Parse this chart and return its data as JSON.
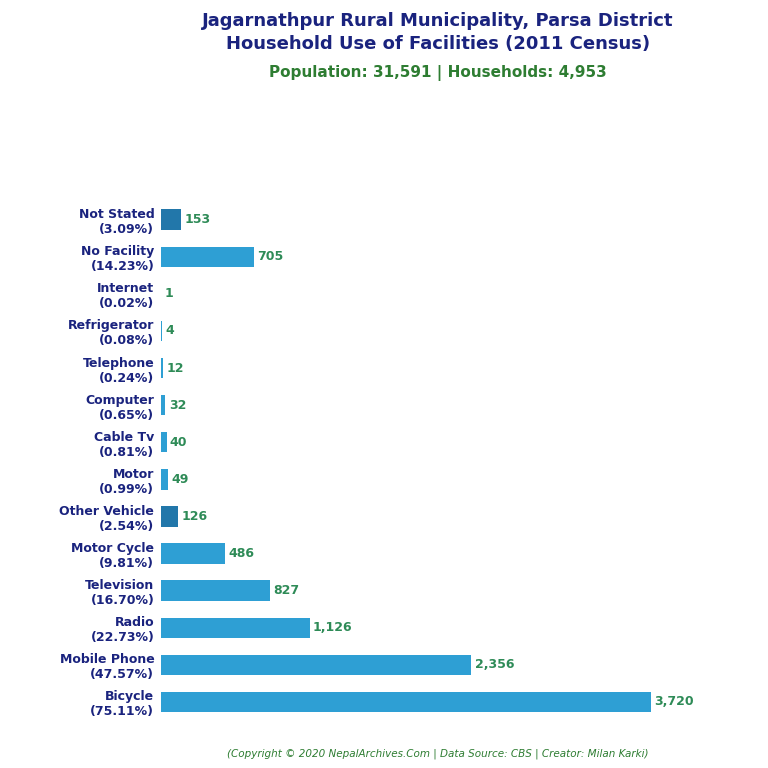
{
  "title_line1": "Jagarnathpur Rural Municipality, Parsa District",
  "title_line2": "Household Use of Facilities (2011 Census)",
  "subtitle": "Population: 31,591 | Households: 4,953",
  "footer": "(Copyright © 2020 NepalArchives.Com | Data Source: CBS | Creator: Milan Karki)",
  "categories": [
    "Not Stated\n(3.09%)",
    "No Facility\n(14.23%)",
    "Internet\n(0.02%)",
    "Refrigerator\n(0.08%)",
    "Telephone\n(0.24%)",
    "Computer\n(0.65%)",
    "Cable Tv\n(0.81%)",
    "Motor\n(0.99%)",
    "Other Vehicle\n(2.54%)",
    "Motor Cycle\n(9.81%)",
    "Television\n(16.70%)",
    "Radio\n(22.73%)",
    "Mobile Phone\n(47.57%)",
    "Bicycle\n(75.11%)"
  ],
  "values": [
    153,
    705,
    1,
    4,
    12,
    32,
    40,
    49,
    126,
    486,
    827,
    1126,
    2356,
    3720
  ],
  "bar_colors": [
    "#2277AA",
    "#2E9FD4",
    "#2E9FD4",
    "#2E9FD4",
    "#2E9FD4",
    "#2E9FD4",
    "#2E9FD4",
    "#2E9FD4",
    "#2277AA",
    "#2E9FD4",
    "#2E9FD4",
    "#2E9FD4",
    "#2E9FD4",
    "#2E9FD4"
  ],
  "value_color": "#2e8b57",
  "title_color": "#1a237e",
  "subtitle_color": "#2e7d32",
  "footer_color": "#2e7d32",
  "background_color": "#ffffff",
  "xlim": [
    0,
    4200
  ]
}
